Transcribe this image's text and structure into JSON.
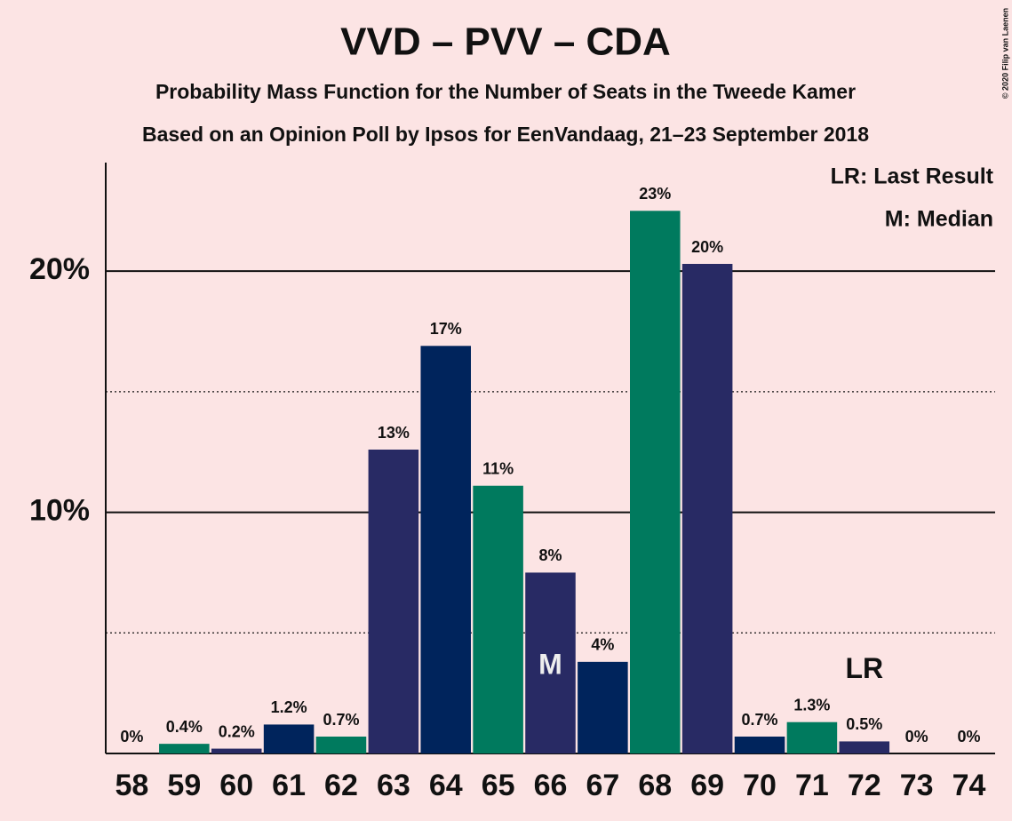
{
  "chart_data": {
    "type": "bar",
    "title": "VVD – PVV – CDA",
    "subtitle": "Probability Mass Function for the Number of Seats in the Tweede Kamer",
    "subtitle2": "Based on an Opinion Poll by Ipsos for EenVandaag, 21–23 September 2018",
    "copyright": "© 2020 Filip van Laenen",
    "legend": [
      "LR: Last Result",
      "M: Median"
    ],
    "categories": [
      58,
      59,
      60,
      61,
      62,
      63,
      64,
      65,
      66,
      67,
      68,
      69,
      70,
      71,
      72,
      73,
      74
    ],
    "values": [
      0,
      0.4,
      0.2,
      1.2,
      0.7,
      12.6,
      16.9,
      11.1,
      7.5,
      3.8,
      22.5,
      20.3,
      0.7,
      1.3,
      0.5,
      0,
      0
    ],
    "value_labels": [
      "0%",
      "0.4%",
      "0.2%",
      "1.2%",
      "0.7%",
      "13%",
      "17%",
      "11%",
      "8%",
      "4%",
      "23%",
      "20%",
      "0.7%",
      "1.3%",
      "0.5%",
      "0%",
      "0%"
    ],
    "colors": [
      "#00245c",
      "#007a5e",
      "#282a64",
      "#00245c",
      "#007a5e",
      "#282a64",
      "#00245c",
      "#007a5e",
      "#282a64",
      "#00245c",
      "#007a5e",
      "#282a64",
      "#00245c",
      "#007a5e",
      "#282a64",
      "#00245c",
      "#007a5e"
    ],
    "median": {
      "label": "M",
      "seats": 66
    },
    "last_result": {
      "label": "LR",
      "seats": 72
    },
    "ylim": [
      0,
      24.5
    ],
    "yticks": [
      {
        "value": 10,
        "label": "10%"
      },
      {
        "value": 20,
        "label": "20%"
      }
    ],
    "minor_yticks": [
      5,
      15
    ],
    "grid": true
  }
}
